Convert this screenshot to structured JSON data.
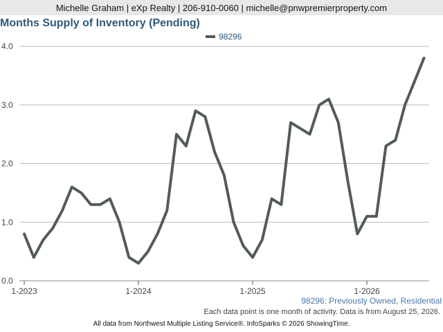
{
  "header": {
    "text": "Michelle Graham | eXp Realty | 206-910-0060 | michelle@pnwpremierproperty.com"
  },
  "chart_data": {
    "type": "line",
    "title": "Months Supply of Inventory (Pending)",
    "xlabel": "",
    "ylabel": "",
    "ylim": [
      0,
      4
    ],
    "y_ticks": [
      "0.0",
      "1.0",
      "2.0",
      "3.0",
      "4.0"
    ],
    "x_ticks": [
      "1-2023",
      "1-2024",
      "1-2025",
      "1-2026"
    ],
    "grid": true,
    "legend_position": "top-center",
    "x": [
      "2023-01",
      "2023-02",
      "2023-03",
      "2023-04",
      "2023-05",
      "2023-06",
      "2023-07",
      "2023-08",
      "2023-09",
      "2023-10",
      "2023-11",
      "2023-12",
      "2024-01",
      "2024-02",
      "2024-03",
      "2024-04",
      "2024-05",
      "2024-06",
      "2024-07",
      "2024-08",
      "2024-09",
      "2024-10",
      "2024-11",
      "2024-12",
      "2025-01",
      "2025-02",
      "2025-03",
      "2025-04",
      "2025-05",
      "2025-06",
      "2025-07",
      "2025-08",
      "2025-09",
      "2025-10",
      "2025-11",
      "2025-12",
      "2026-01",
      "2026-02",
      "2026-03",
      "2026-04",
      "2026-05",
      "2026-06",
      "2026-07"
    ],
    "series": [
      {
        "name": "98296",
        "color": "#525b5b",
        "values": [
          0.8,
          0.4,
          0.7,
          0.9,
          1.2,
          1.6,
          1.5,
          1.3,
          1.3,
          1.4,
          1.0,
          0.4,
          0.3,
          0.5,
          0.8,
          1.2,
          2.5,
          2.3,
          2.9,
          2.8,
          2.2,
          1.8,
          1.0,
          0.6,
          0.4,
          0.7,
          1.4,
          1.3,
          2.7,
          2.6,
          2.5,
          3.0,
          3.1,
          2.7,
          1.7,
          0.8,
          1.1,
          1.1,
          2.3,
          2.4,
          3.0,
          3.4,
          3.8
        ]
      }
    ]
  },
  "series_label": "98296: Previously Owned, Residential",
  "footnote": "Each data point is one month of activity. Data is from August 25, 2026.",
  "source": "All data from Northwest Multiple Listing Service®. InfoSparks © 2026 ShowingTime."
}
